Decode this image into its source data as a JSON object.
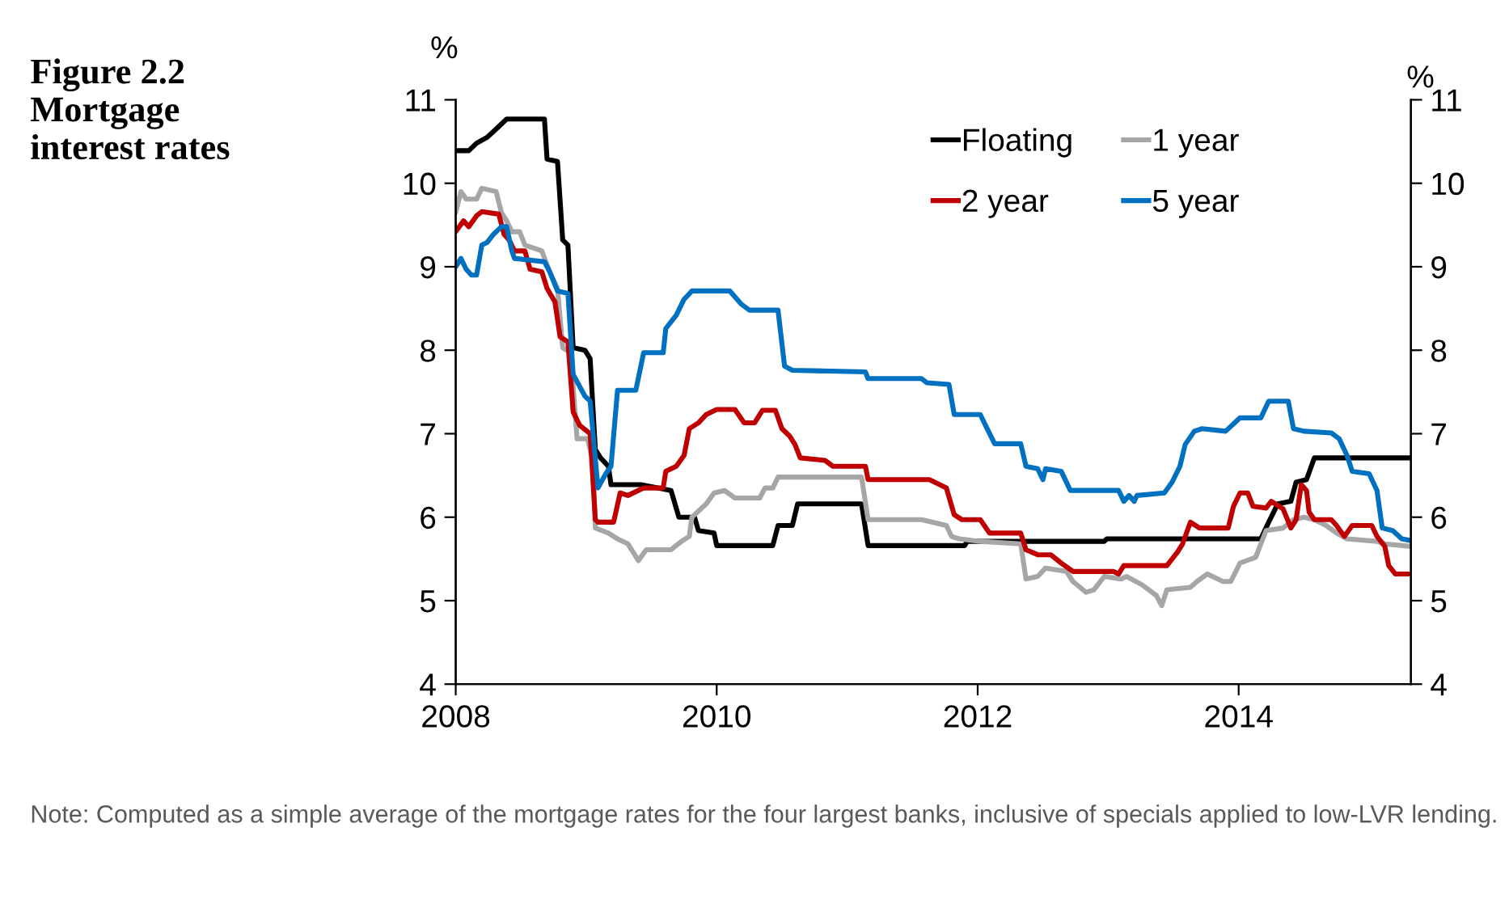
{
  "chart_data": {
    "type": "line",
    "title": "Figure 2.2\nMortgage\ninterest rates",
    "ylabel": "%",
    "y2label": "%",
    "annotations": [
      "Note: Computed as a simple average of the mortgage rates for the four largest banks, inclusive of specials applied to low-LVR lending."
    ],
    "xlim": [
      2008,
      2015.32
    ],
    "xticks": [
      2008,
      2010,
      2012,
      2014
    ],
    "ylim": [
      4,
      11
    ],
    "yticks": [
      4,
      5,
      6,
      7,
      8,
      9,
      10,
      11
    ],
    "y2lim": [
      4,
      11
    ],
    "y2ticks": [
      4,
      5,
      6,
      7,
      8,
      9,
      10,
      11
    ],
    "grid": false,
    "legend": "top",
    "line_style": "solid",
    "marker": "none",
    "series": [
      {
        "name": "Floating",
        "color": "#000000",
        "x": [
          2008.0,
          2008.1,
          2008.16,
          2008.24,
          2008.33,
          2008.39,
          2008.68,
          2008.7,
          2008.78,
          2008.82,
          2008.86,
          2008.9,
          2008.99,
          2009.03,
          2009.07,
          2009.11,
          2009.17,
          2009.19,
          2009.42,
          2009.65,
          2009.71,
          2009.83,
          2009.86,
          2009.98,
          2010.0,
          2010.43,
          2010.47,
          2010.58,
          2010.62,
          2011.11,
          2011.16,
          2011.9,
          2011.92,
          2012.97,
          2012.99,
          2014.17,
          2014.23,
          2014.3,
          2014.4,
          2014.44,
          2014.52,
          2014.58,
          2015.32
        ],
        "values": [
          10.39,
          10.39,
          10.48,
          10.55,
          10.68,
          10.77,
          10.77,
          10.29,
          10.26,
          9.32,
          9.26,
          8.03,
          8.0,
          7.9,
          6.81,
          6.71,
          6.61,
          6.39,
          6.39,
          6.32,
          6.0,
          6.0,
          5.84,
          5.81,
          5.66,
          5.66,
          5.9,
          5.9,
          6.16,
          6.16,
          5.66,
          5.66,
          5.71,
          5.71,
          5.74,
          5.74,
          5.94,
          6.16,
          6.19,
          6.42,
          6.45,
          6.71,
          6.71
        ]
      },
      {
        "name": "1 year",
        "color": "#a6a6a6",
        "x": [
          2008.0,
          2008.04,
          2008.08,
          2008.16,
          2008.2,
          2008.31,
          2008.35,
          2008.39,
          2008.43,
          2008.49,
          2008.53,
          2008.66,
          2008.72,
          2008.78,
          2008.82,
          2008.88,
          2008.93,
          2009.01,
          2009.05,
          2009.07,
          2009.17,
          2009.24,
          2009.32,
          2009.4,
          2009.46,
          2009.65,
          2009.73,
          2009.79,
          2009.81,
          2009.92,
          2009.98,
          2010.06,
          2010.14,
          2010.33,
          2010.37,
          2010.43,
          2010.47,
          2011.11,
          2011.16,
          2011.57,
          2011.76,
          2011.8,
          2011.86,
          2012.02,
          2012.33,
          2012.37,
          2012.46,
          2012.52,
          2012.68,
          2012.73,
          2012.83,
          2012.89,
          2012.97,
          2013.1,
          2013.14,
          2013.26,
          2013.37,
          2013.41,
          2013.45,
          2013.63,
          2013.68,
          2013.76,
          2013.88,
          2013.94,
          2014.01,
          2014.13,
          2014.21,
          2014.34,
          2014.42,
          2014.5,
          2014.58,
          2014.67,
          2014.75,
          2014.83,
          2015.06,
          2015.12,
          2015.32
        ],
        "values": [
          9.65,
          9.9,
          9.81,
          9.81,
          9.94,
          9.9,
          9.65,
          9.55,
          9.42,
          9.42,
          9.26,
          9.19,
          8.94,
          8.74,
          8.03,
          7.97,
          6.94,
          6.94,
          6.68,
          5.87,
          5.81,
          5.74,
          5.68,
          5.48,
          5.61,
          5.61,
          5.71,
          5.77,
          6.0,
          6.16,
          6.29,
          6.32,
          6.23,
          6.23,
          6.35,
          6.35,
          6.48,
          6.48,
          5.97,
          5.97,
          5.9,
          5.77,
          5.74,
          5.71,
          5.68,
          5.26,
          5.29,
          5.39,
          5.35,
          5.23,
          5.1,
          5.13,
          5.29,
          5.26,
          5.29,
          5.19,
          5.06,
          4.94,
          5.13,
          5.16,
          5.23,
          5.32,
          5.23,
          5.23,
          5.45,
          5.52,
          5.84,
          5.87,
          5.97,
          6.0,
          5.97,
          5.9,
          5.81,
          5.74,
          5.71,
          5.68,
          5.65
        ]
      },
      {
        "name": "2 year",
        "color": "#c00000",
        "x": [
          2008.0,
          2008.06,
          2008.1,
          2008.16,
          2008.2,
          2008.33,
          2008.37,
          2008.41,
          2008.45,
          2008.53,
          2008.57,
          2008.66,
          2008.7,
          2008.76,
          2008.8,
          2008.86,
          2008.9,
          2008.95,
          2009.03,
          2009.07,
          2009.09,
          2009.21,
          2009.26,
          2009.32,
          2009.44,
          2009.59,
          2009.61,
          2009.69,
          2009.75,
          2009.79,
          2009.86,
          2009.92,
          2010.0,
          2010.14,
          2010.21,
          2010.29,
          2010.35,
          2010.45,
          2010.5,
          2010.56,
          2010.6,
          2010.64,
          2010.83,
          2010.89,
          2011.14,
          2011.16,
          2011.57,
          2011.63,
          2011.76,
          2011.82,
          2011.88,
          2012.02,
          2012.09,
          2012.33,
          2012.37,
          2012.46,
          2012.56,
          2012.64,
          2012.73,
          2012.93,
          2013.04,
          2013.08,
          2013.12,
          2013.45,
          2013.53,
          2013.57,
          2013.63,
          2013.7,
          2013.92,
          2013.96,
          2014.01,
          2014.07,
          2014.11,
          2014.21,
          2014.25,
          2014.34,
          2014.4,
          2014.44,
          2014.48,
          2014.52,
          2014.54,
          2014.58,
          2014.71,
          2014.75,
          2014.81,
          2014.87,
          2015.02,
          2015.06,
          2015.12,
          2015.15,
          2015.2,
          2015.32
        ],
        "values": [
          9.42,
          9.55,
          9.48,
          9.61,
          9.66,
          9.63,
          9.39,
          9.32,
          9.19,
          9.19,
          8.97,
          8.94,
          8.74,
          8.58,
          8.16,
          8.1,
          7.26,
          7.1,
          7.0,
          5.97,
          5.94,
          5.94,
          6.29,
          6.26,
          6.35,
          6.35,
          6.55,
          6.61,
          6.74,
          7.06,
          7.13,
          7.23,
          7.29,
          7.29,
          7.13,
          7.13,
          7.28,
          7.28,
          7.06,
          6.97,
          6.87,
          6.71,
          6.68,
          6.61,
          6.61,
          6.45,
          6.45,
          6.45,
          6.35,
          6.03,
          5.97,
          5.97,
          5.81,
          5.81,
          5.61,
          5.55,
          5.55,
          5.45,
          5.35,
          5.35,
          5.35,
          5.32,
          5.42,
          5.42,
          5.58,
          5.68,
          5.94,
          5.87,
          5.87,
          6.13,
          6.29,
          6.29,
          6.13,
          6.11,
          6.19,
          6.1,
          5.87,
          5.97,
          6.39,
          6.32,
          6.06,
          5.97,
          5.97,
          5.9,
          5.77,
          5.9,
          5.9,
          5.77,
          5.65,
          5.42,
          5.32,
          5.32
        ]
      },
      {
        "name": "5 year",
        "color": "#0070c0",
        "x": [
          2008.0,
          2008.04,
          2008.08,
          2008.12,
          2008.16,
          2008.2,
          2008.24,
          2008.29,
          2008.35,
          2008.39,
          2008.43,
          2008.45,
          2008.68,
          2008.72,
          2008.78,
          2008.86,
          2008.9,
          2008.99,
          2009.03,
          2009.09,
          2009.15,
          2009.19,
          2009.24,
          2009.38,
          2009.44,
          2009.59,
          2009.61,
          2009.69,
          2009.75,
          2009.81,
          2010.1,
          2010.19,
          2010.25,
          2010.47,
          2010.52,
          2010.58,
          2011.14,
          2011.16,
          2011.57,
          2011.61,
          2011.78,
          2011.82,
          2012.02,
          2012.06,
          2012.13,
          2012.33,
          2012.37,
          2012.46,
          2012.5,
          2012.52,
          2012.64,
          2012.71,
          2013.08,
          2013.12,
          2013.16,
          2013.2,
          2013.22,
          2013.43,
          2013.49,
          2013.55,
          2013.59,
          2013.66,
          2013.72,
          2013.9,
          2014.01,
          2014.17,
          2014.23,
          2014.38,
          2014.42,
          2014.5,
          2014.71,
          2014.77,
          2014.83,
          2014.87,
          2015.0,
          2015.06,
          2015.1,
          2015.18,
          2015.25,
          2015.32
        ],
        "values": [
          9.0,
          9.1,
          8.97,
          8.9,
          8.9,
          9.26,
          9.29,
          9.39,
          9.48,
          9.48,
          9.19,
          9.1,
          9.06,
          8.94,
          8.71,
          8.68,
          7.71,
          7.45,
          7.39,
          6.35,
          6.52,
          6.61,
          7.52,
          7.52,
          7.97,
          7.97,
          8.26,
          8.42,
          8.61,
          8.71,
          8.71,
          8.55,
          8.48,
          8.48,
          7.81,
          7.76,
          7.74,
          7.66,
          7.66,
          7.61,
          7.59,
          7.23,
          7.23,
          7.1,
          6.88,
          6.88,
          6.61,
          6.58,
          6.45,
          6.58,
          6.55,
          6.32,
          6.32,
          6.19,
          6.26,
          6.19,
          6.26,
          6.29,
          6.42,
          6.61,
          6.87,
          7.03,
          7.06,
          7.03,
          7.19,
          7.19,
          7.39,
          7.39,
          7.06,
          7.03,
          7.01,
          6.94,
          6.74,
          6.55,
          6.52,
          6.32,
          5.87,
          5.84,
          5.74,
          5.72
        ]
      }
    ]
  }
}
